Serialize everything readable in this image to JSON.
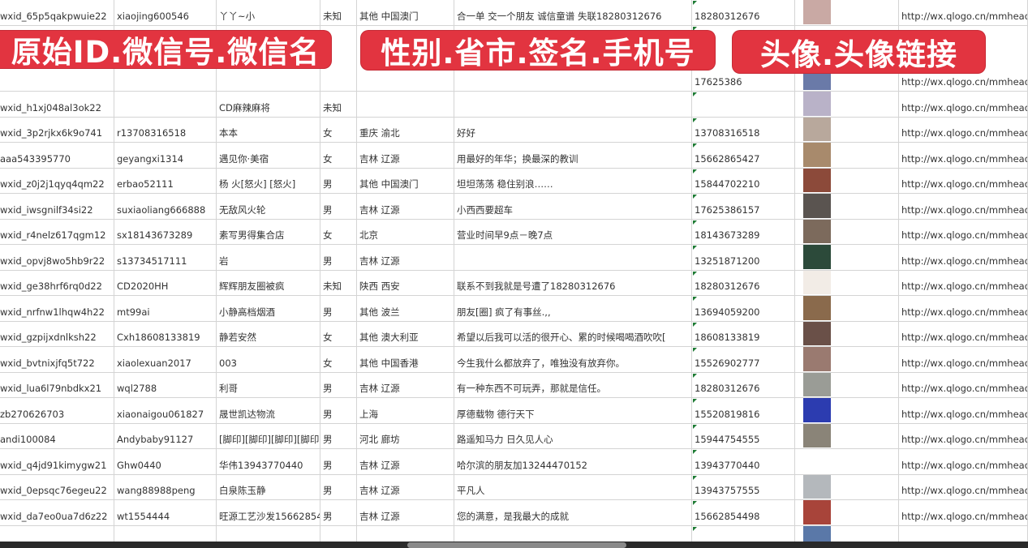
{
  "overlays": [
    "原始ID.微信号.微信名",
    "性别.省市.签名.手机号",
    "头像.头像链接"
  ],
  "rows": [
    {
      "id": "wxid_65p5qakpwuie22",
      "wechat": "xiaojing600546",
      "name": "丫丫~小",
      "gender": "未知",
      "region": "其他 中国澳门",
      "signature": "合一单 交一个朋友 诚信童谱 失联18280312676",
      "phone": "18280312676",
      "avatar_color": "#c9a9a4",
      "url": "http://wx.qlogo.cn/mmhead"
    },
    {
      "id": "",
      "wechat": "",
      "name": "",
      "gender": "",
      "region": "",
      "signature": "",
      "phone": "17625386",
      "avatar_color": "#6a7aa8",
      "url": "http://wx.qlogo.cn/mmhead"
    },
    {
      "id": "wxid_h1xj048al3ok22",
      "wechat": "",
      "name": "CD麻辣麻将",
      "gender": "未知",
      "region": "",
      "signature": "",
      "phone": "",
      "avatar_color": "#b9b2c8",
      "url": "http://wx.qlogo.cn/mmhead"
    },
    {
      "id": "wxid_3p2rjkx6k9o741",
      "wechat": "r13708316518",
      "name": "本本",
      "gender": "女",
      "region": "重庆 渝北",
      "signature": "好好",
      "phone": "13708316518",
      "avatar_color": "#b8a89c",
      "url": "http://wx.qlogo.cn/mmhead"
    },
    {
      "id": "aaa543395770",
      "wechat": "geyangxi1314",
      "name": "遇见你·美宿",
      "gender": "女",
      "region": "吉林 辽源",
      "signature": "用最好的年华；换最深的教训",
      "phone": "15662865427",
      "avatar_color": "#a88a6c",
      "url": "http://wx.qlogo.cn/mmhead"
    },
    {
      "id": "wxid_z0j2j1qyq4qm22",
      "wechat": "erbao52111",
      "name": "杨 火[怒火] [怒火]",
      "gender": "男",
      "region": "其他 中国澳门",
      "signature": "坦坦荡荡 稳住别浪……",
      "phone": "15844702210",
      "avatar_color": "#8c4a3a",
      "url": "http://wx.qlogo.cn/mmhead"
    },
    {
      "id": "wxid_iwsgnilf34si22",
      "wechat": "suxiaoliang666888",
      "name": "无敌风火轮",
      "gender": "男",
      "region": "吉林 辽源",
      "signature": "小西西要超车",
      "phone": "17625386157",
      "avatar_color": "#5a5450",
      "url": "http://wx.qlogo.cn/mmhead"
    },
    {
      "id": "wxid_r4nelz617qgm12",
      "wechat": "sx18143673289",
      "name": "素写男得集合店",
      "gender": "女",
      "region": "北京",
      "signature": "营业时间早9点－晚7点",
      "phone": "18143673289",
      "avatar_color": "#7c6a5c",
      "url": "http://wx.qlogo.cn/mmhead"
    },
    {
      "id": "wxid_opvj8wo5hb9r22",
      "wechat": "s13734517111",
      "name": "岩",
      "gender": "男",
      "region": "吉林 辽源",
      "signature": "",
      "phone": "13251871200",
      "avatar_color": "#2c4a3a",
      "url": "http://wx.qlogo.cn/mmhead"
    },
    {
      "id": "wxid_ge38hrf6rq0d22",
      "wechat": "CD2020HH",
      "name": "辉辉朋友圈被疯",
      "gender": "未知",
      "region": "陕西 西安",
      "signature": "联系不到我就是号遭了18280312676",
      "phone": "18280312676",
      "avatar_color": "#f2ece6",
      "url": "http://wx.qlogo.cn/mmhead"
    },
    {
      "id": "wxid_nrfnw1lhqw4h22",
      "wechat": "mt99ai",
      "name": "小静高档烟酒",
      "gender": "男",
      "region": "其他 波兰",
      "signature": "朋友[圈] 疯了有事丝.,,",
      "phone": "13694059200",
      "avatar_color": "#8a6a4c",
      "url": "http://wx.qlogo.cn/mmhead"
    },
    {
      "id": "wxid_gzpijxdnlksh22",
      "wechat": "Cxh18608133819",
      "name": "静若安然",
      "gender": "女",
      "region": "其他 澳大利亚",
      "signature": "希望以后我可以活的很开心、累的时候喝喝酒吹吹[",
      "phone": "18608133819",
      "avatar_color": "#6a5048",
      "url": "http://wx.qlogo.cn/mmhead"
    },
    {
      "id": "wxid_bvtnixjfq5t722",
      "wechat": "xiaolexuan2017",
      "name": "003",
      "gender": "女",
      "region": "其他 中国香港",
      "signature": "今生我什么都放弃了，唯独没有放弃你。",
      "phone": "15526902777",
      "avatar_color": "#9a7a70",
      "url": "http://wx.qlogo.cn/mmhead"
    },
    {
      "id": "wxid_lua6l79nbdkx21",
      "wechat": "wql2788",
      "name": "利哥",
      "gender": "男",
      "region": "吉林 辽源",
      "signature": "有一种东西不可玩弄，那就是信任。",
      "phone": "18280312676",
      "avatar_color": "#9a9c96",
      "url": "http://wx.qlogo.cn/mmhead"
    },
    {
      "id": "zb270626703",
      "wechat": "xiaonaigou061827",
      "name": "晟世凯达物流",
      "gender": "男",
      "region": "上海",
      "signature": "厚德载物 德行天下",
      "phone": "15520819816",
      "avatar_color": "#2c3cb0",
      "url": "http://wx.qlogo.cn/mmhead"
    },
    {
      "id": "andi100084",
      "wechat": "Andybaby91127",
      "name": "[脚印][脚印][脚印][脚印]",
      "gender": "男",
      "region": "河北 廊坊",
      "signature": "路遥知马力 日久见人心",
      "phone": "15944754555",
      "avatar_color": "#8a8478",
      "url": "http://wx.qlogo.cn/mmhead"
    },
    {
      "id": "wxid_q4jd91kimygw21",
      "wechat": "Ghw0440",
      "name": "华伟13943770440",
      "gender": "男",
      "region": "吉林 辽源",
      "signature": "哈尔滨的朋友加13244470152",
      "phone": "13943770440",
      "avatar_color": "#ffffff",
      "url": "http://wx.qlogo.cn/mmhead"
    },
    {
      "id": "wxid_0epsqc76egeu22",
      "wechat": "wang88988peng",
      "name": "白泉陈玉静",
      "gender": "男",
      "region": "吉林 辽源",
      "signature": "平凡人",
      "phone": "13943757555",
      "avatar_color": "#b4b8bc",
      "url": "http://wx.qlogo.cn/mmhead"
    },
    {
      "id": "wxid_da7eo0ua7d6z22",
      "wechat": "wt1554444",
      "name": "旺源工艺沙发15662854",
      "gender": "男",
      "region": "吉林 辽源",
      "signature": "您的满意，是我最大的成就",
      "phone": "15662854498",
      "avatar_color": "#a8443a",
      "url": "http://wx.qlogo.cn/mmhead"
    },
    {
      "id": "",
      "wechat": "",
      "name": "",
      "gender": "",
      "region": "",
      "signature": "",
      "phone": "",
      "avatar_color": "#5a78a8",
      "url": ""
    }
  ],
  "overlay_color": "#e23440"
}
